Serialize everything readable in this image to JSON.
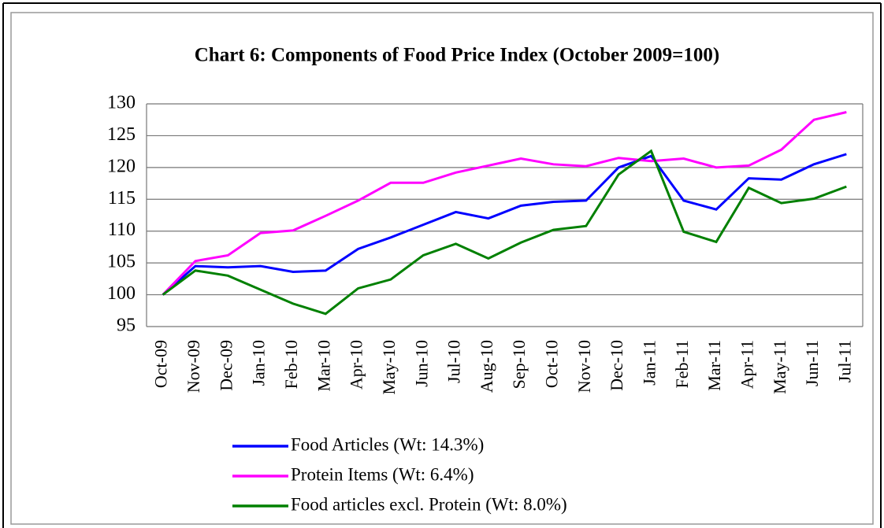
{
  "chart_data": {
    "type": "line",
    "title": "Chart 6: Components of Food Price Index (October 2009=100)",
    "categories": [
      "Oct-09",
      "Nov-09",
      "Dec-09",
      "Jan-10",
      "Feb-10",
      "Mar-10",
      "Apr-10",
      "May-10",
      "Jun-10",
      "Jul-10",
      "Aug-10",
      "Sep-10",
      "Oct-10",
      "Nov-10",
      "Dec-10",
      "Jan-11",
      "Feb-11",
      "Mar-11",
      "Apr-11",
      "May-11",
      "Jun-11",
      "Jul-11"
    ],
    "series": [
      {
        "name": "Food Articles (Wt: 14.3%)",
        "color": "#0000ff",
        "values": [
          100,
          104.5,
          104.3,
          104.5,
          103.6,
          103.8,
          107.2,
          109,
          111,
          113,
          112,
          114,
          114.6,
          114.8,
          120,
          121.8,
          114.8,
          113.4,
          118.3,
          118.1,
          120.5,
          122.1
        ]
      },
      {
        "name": "Protein Items (Wt: 6.4%)",
        "color": "#ff00ff",
        "values": [
          100,
          105.3,
          106.2,
          109.7,
          110.1,
          112.4,
          114.8,
          117.6,
          117.6,
          119.2,
          120.3,
          121.4,
          120.5,
          120.2,
          121.5,
          121,
          121.4,
          120,
          120.3,
          122.8,
          127.5,
          128.7
        ]
      },
      {
        "name": "Food articles excl. Protein (Wt: 8.0%)",
        "color": "#008000",
        "values": [
          100,
          103.8,
          103,
          100.8,
          98.6,
          97,
          101,
          102.4,
          106.2,
          108,
          105.7,
          108.2,
          110.2,
          110.8,
          118.9,
          122.6,
          109.9,
          108.3,
          116.8,
          114.4,
          115.1,
          117
        ]
      }
    ],
    "ylim": [
      95,
      130
    ],
    "yticks": [
      95,
      100,
      105,
      110,
      115,
      120,
      125,
      130
    ],
    "grid": true
  }
}
